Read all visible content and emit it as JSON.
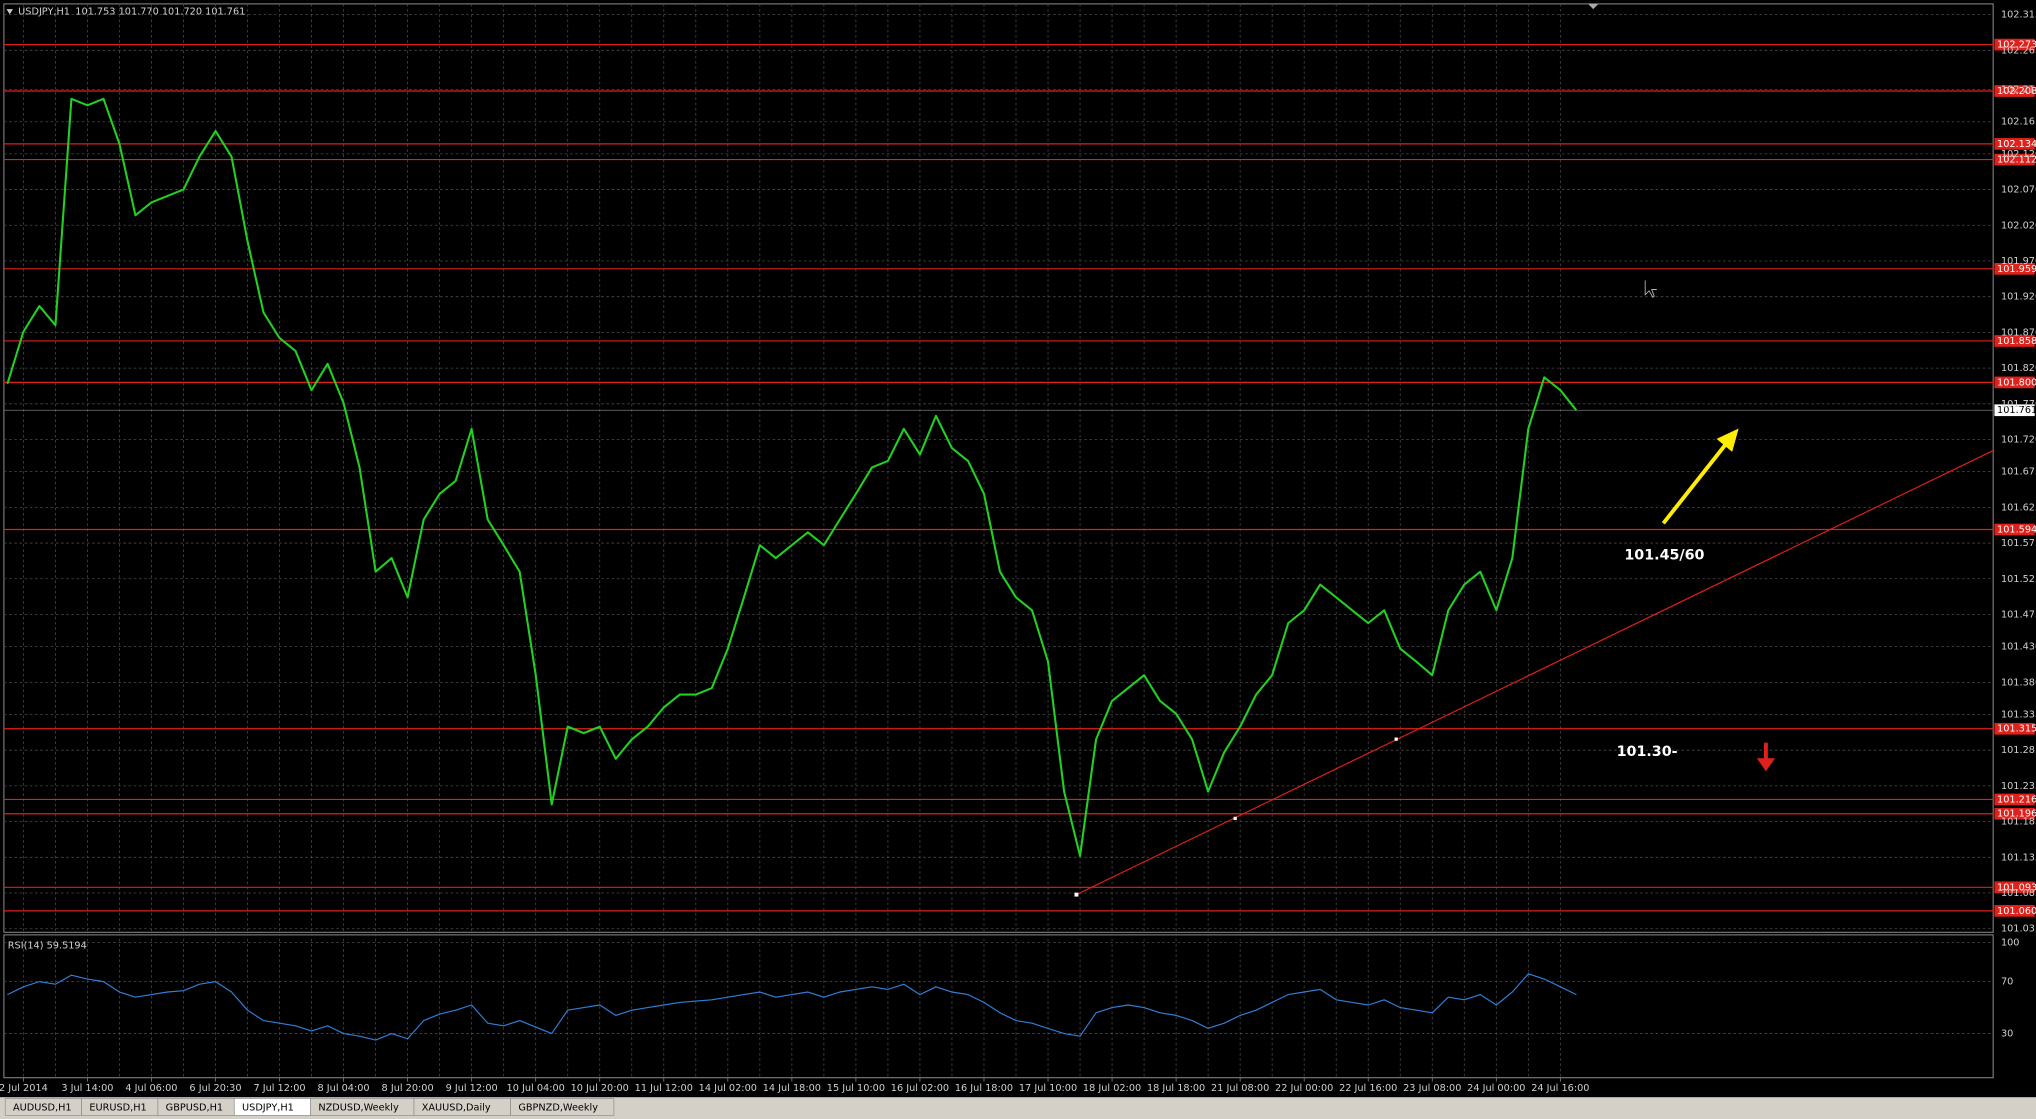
{
  "header": {
    "symbol": "USDJPY,H1",
    "quote": "101.753 101.770 101.720 101.761"
  },
  "chart_data": [
    {
      "type": "line",
      "categories": [
        null,
        "2 Jul 2014",
        null,
        null,
        null,
        "3 Jul 14:00",
        null,
        null,
        null,
        "4 Jul 06:00",
        null,
        null,
        null,
        "6 Jul 20:30",
        null,
        null,
        null,
        "7 Jul 12:00",
        null,
        null,
        null,
        "8 Jul 04:00",
        null,
        null,
        null,
        "8 Jul 20:00",
        null,
        null,
        null,
        "9 Jul 12:00",
        null,
        null,
        null,
        "10 Jul 04:00",
        null,
        null,
        null,
        "10 Jul 20:00",
        null,
        null,
        null,
        "11 Jul 12:00",
        null,
        null,
        null,
        "14 Jul 02:00",
        null,
        null,
        null,
        "14 Jul 18:00",
        null,
        null,
        null,
        "15 Jul 10:00",
        null,
        null,
        null,
        "16 Jul 02:00",
        null,
        null,
        null,
        "16 Jul 18:00",
        null,
        null,
        null,
        "17 Jul 10:00",
        null,
        null,
        null,
        "18 Jul 02:00",
        null,
        null,
        null,
        "18 Jul 18:00",
        null,
        null,
        null,
        "21 Jul 08:00",
        null,
        null,
        null,
        "22 Jul 00:00",
        null,
        null,
        null,
        "22 Jul 16:00",
        null,
        null,
        null,
        "23 Jul 08:00",
        null,
        null,
        null,
        "24 Jul 00:00",
        null,
        null,
        null,
        "24 Jul 16:00",
        null
      ],
      "values": [
        101.798,
        101.871,
        101.907,
        101.88,
        102.197,
        102.188,
        102.197,
        102.134,
        102.034,
        102.052,
        102.061,
        102.07,
        102.116,
        102.152,
        102.116,
        101.998,
        101.898,
        101.862,
        101.844,
        101.789,
        101.826,
        101.771,
        101.681,
        101.535,
        101.554,
        101.499,
        101.608,
        101.644,
        101.662,
        101.735,
        101.608,
        101.572,
        101.535,
        101.39,
        101.209,
        101.318,
        101.309,
        101.318,
        101.273,
        101.3,
        101.318,
        101.345,
        101.363,
        101.363,
        101.372,
        101.427,
        101.499,
        101.572,
        101.554,
        101.572,
        101.59,
        101.572,
        101.608,
        101.644,
        101.681,
        101.69,
        101.735,
        101.699,
        101.753,
        101.708,
        101.69,
        101.644,
        101.535,
        101.499,
        101.481,
        101.409,
        101.227,
        101.137,
        101.3,
        101.354,
        101.372,
        101.39,
        101.354,
        101.336,
        101.3,
        101.227,
        101.282,
        101.318,
        101.363,
        101.39,
        101.463,
        101.481,
        101.517,
        101.499,
        101.481,
        101.463,
        101.481,
        101.427,
        101.409,
        101.39,
        101.481,
        101.517,
        101.535,
        101.481,
        101.554,
        101.735,
        101.807,
        101.789,
        101.761
      ],
      "color": "#22d022",
      "ylim": [
        101.03,
        102.33
      ],
      "yticks": [
        102.315,
        102.265,
        {
          "value": 102.21,
          "label": "102.210"
        },
        102.165,
        {
          "value": 102.12,
          "label": "102.120"
        },
        {
          "value": 102.07,
          "label": "102.070"
        },
        {
          "value": 102.02,
          "label": "102.020"
        },
        {
          "value": 101.97,
          "label": "101.970"
        },
        {
          "value": 101.92,
          "label": "101.920"
        },
        {
          "value": 101.87,
          "label": "101.870"
        },
        {
          "value": 101.82,
          "label": "101.820"
        },
        {
          "value": 101.77,
          "label": "101.770"
        },
        {
          "value": 101.72,
          "label": "101.720"
        },
        101.675,
        101.625,
        101.575,
        101.525,
        101.475,
        {
          "value": 101.43,
          "label": "101.430"
        },
        {
          "value": 101.38,
          "label": "101.380"
        },
        101.335,
        101.285,
        101.235,
        101.185,
        101.135,
        101.085,
        101.035
      ],
      "levels": [
        102.273,
        102.208,
        102.134,
        102.112,
        101.959,
        101.858,
        {
          "value": 101.8,
          "label": "101.800"
        },
        101.594,
        101.315,
        101.216,
        101.196,
        101.093,
        {
          "value": 101.06,
          "label": "101.060"
        }
      ],
      "level_color": "#e0201a",
      "current_price": 101.761,
      "annotations": [
        "101.45/60",
        "101.30-"
      ],
      "grid": true
    },
    {
      "type": "line",
      "title": "RSI(14) 59.5194",
      "values": [
        60,
        66,
        70,
        68,
        75,
        72,
        70,
        62,
        58,
        60,
        62,
        63,
        68,
        70,
        62,
        48,
        40,
        38,
        36,
        32,
        36,
        30,
        28,
        25,
        30,
        26,
        40,
        45,
        48,
        52,
        38,
        36,
        40,
        35,
        30,
        48,
        50,
        52,
        44,
        48,
        50,
        52,
        54,
        55,
        56,
        58,
        60,
        62,
        58,
        60,
        62,
        58,
        62,
        64,
        66,
        64,
        68,
        60,
        66,
        62,
        60,
        54,
        46,
        40,
        38,
        34,
        30,
        28,
        46,
        50,
        52,
        50,
        46,
        44,
        40,
        34,
        38,
        44,
        48,
        54,
        60,
        62,
        64,
        56,
        54,
        52,
        56,
        50,
        48,
        46,
        58,
        56,
        60,
        52,
        62,
        76,
        72,
        66,
        60
      ],
      "color": "#2f7fd8",
      "ylim": [
        0,
        100
      ],
      "yticks": [
        30,
        70,
        100
      ],
      "grid": true
    }
  ],
  "tabs": [
    "AUDUSD,H1",
    "EURUSD,H1",
    "GBPUSD,H1",
    "USDJPY,H1",
    "NZDUSD,Weekly",
    "XAUUSD,Daily",
    "GBPNZD,Weekly"
  ],
  "active_tab": 3
}
